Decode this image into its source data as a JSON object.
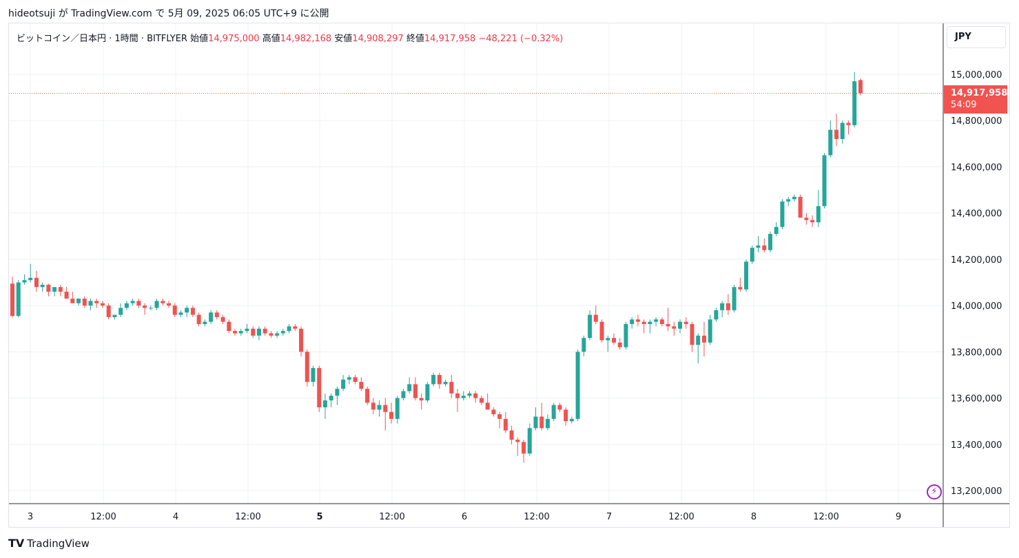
{
  "header": {
    "publisher_line": "hideotsuji が TradingView.com で 5月 09, 2025 06:05 UTC+9 に公開"
  },
  "legend": {
    "symbol": "ビットコイン／日本円 · 1時間 · BITFLYER",
    "open_label": "始値",
    "open_value": "14,975,000",
    "high_label": "高値",
    "high_value": "14,982,168",
    "low_label": "安値",
    "low_value": "14,908,297",
    "close_label": "終値",
    "close_value": "14,917,958",
    "change": "−48,221 (−0.32%)"
  },
  "currency_button": "JPY",
  "price_tag": {
    "price": "14,917,958",
    "countdown": "54:09"
  },
  "footer": {
    "logo_icon": "tradingview-logo-icon",
    "brand": "TradingView"
  },
  "colors": {
    "up": "#26a69a",
    "down": "#ef5350",
    "grid": "#eef0f3",
    "price_line": "#ef5350"
  },
  "chart_data": {
    "type": "candlestick",
    "yaxis": {
      "ticks": [
        13200000,
        13400000,
        13600000,
        13800000,
        14000000,
        14200000,
        14400000,
        14600000,
        14800000,
        15000000
      ],
      "tick_labels": [
        "13,200,000",
        "13,400,000",
        "13,600,000",
        "13,800,000",
        "14,000,000",
        "14,200,000",
        "14,400,000",
        "14,600,000",
        "14,800,000",
        "15,000,000"
      ],
      "range": [
        13150000,
        15200000
      ]
    },
    "xaxis": {
      "tick_labels": [
        "3",
        "12:00",
        "4",
        "12:00",
        "5",
        "12:00",
        "6",
        "12:00",
        "7",
        "12:00",
        "8",
        "12:00",
        "9"
      ],
      "bold_labels": [
        "5"
      ]
    },
    "last_price": 14917958,
    "candles": [
      [
        14095000,
        14125000,
        13950000,
        13955000
      ],
      [
        13955000,
        14110000,
        13950000,
        14100000
      ],
      [
        14100000,
        14135000,
        14090000,
        14110000
      ],
      [
        14110000,
        14180000,
        14100000,
        14120000
      ],
      [
        14120000,
        14150000,
        14060000,
        14080000
      ],
      [
        14080000,
        14100000,
        14060000,
        14090000
      ],
      [
        14090000,
        14095000,
        14040000,
        14060000
      ],
      [
        14060000,
        14080000,
        14040000,
        14080000
      ],
      [
        14080000,
        14090000,
        14040000,
        14060000
      ],
      [
        14060000,
        14080000,
        14030000,
        14030000
      ],
      [
        14030000,
        14060000,
        14010000,
        14010000
      ],
      [
        14010000,
        14030000,
        14000000,
        14030000
      ],
      [
        14030000,
        14040000,
        13990000,
        14000000
      ],
      [
        14000000,
        14030000,
        13980000,
        14020000
      ],
      [
        14020000,
        14030000,
        13990000,
        14010000
      ],
      [
        14010000,
        14020000,
        13990000,
        14000000
      ],
      [
        14000000,
        14010000,
        13940000,
        13950000
      ],
      [
        13950000,
        13960000,
        13940000,
        13960000
      ],
      [
        13960000,
        14010000,
        13950000,
        13990000
      ],
      [
        13990000,
        14020000,
        13980000,
        14010000
      ],
      [
        14010000,
        14030000,
        14000000,
        14020000
      ],
      [
        14020000,
        14030000,
        13990000,
        14000000
      ],
      [
        14000000,
        14010000,
        13960000,
        13990000
      ],
      [
        13990000,
        14000000,
        13980000,
        13990000
      ],
      [
        13990000,
        14030000,
        13980000,
        14020000
      ],
      [
        14020000,
        14030000,
        14000000,
        14010000
      ],
      [
        14010000,
        14020000,
        13990000,
        14000000
      ],
      [
        14000000,
        14010000,
        13950000,
        13960000
      ],
      [
        13960000,
        13980000,
        13950000,
        13970000
      ],
      [
        13970000,
        14000000,
        13950000,
        13990000
      ],
      [
        13990000,
        14000000,
        13950000,
        13960000
      ],
      [
        13960000,
        13970000,
        13910000,
        13920000
      ],
      [
        13920000,
        13940000,
        13910000,
        13930000
      ],
      [
        13930000,
        13980000,
        13920000,
        13970000
      ],
      [
        13970000,
        13980000,
        13940000,
        13950000
      ],
      [
        13950000,
        13960000,
        13920000,
        13930000
      ],
      [
        13930000,
        13940000,
        13880000,
        13890000
      ],
      [
        13890000,
        13900000,
        13870000,
        13880000
      ],
      [
        13880000,
        13900000,
        13870000,
        13890000
      ],
      [
        13890000,
        13920000,
        13880000,
        13900000
      ],
      [
        13900000,
        13910000,
        13860000,
        13870000
      ],
      [
        13870000,
        13910000,
        13850000,
        13900000
      ],
      [
        13900000,
        13910000,
        13870000,
        13880000
      ],
      [
        13880000,
        13890000,
        13860000,
        13870000
      ],
      [
        13870000,
        13890000,
        13860000,
        13880000
      ],
      [
        13880000,
        13900000,
        13870000,
        13890000
      ],
      [
        13890000,
        13920000,
        13880000,
        13910000
      ],
      [
        13910000,
        13920000,
        13890000,
        13900000
      ],
      [
        13900000,
        13910000,
        13780000,
        13800000
      ],
      [
        13800000,
        13810000,
        13650000,
        13670000
      ],
      [
        13670000,
        13740000,
        13650000,
        13730000
      ],
      [
        13730000,
        13740000,
        13540000,
        13560000
      ],
      [
        13560000,
        13620000,
        13510000,
        13590000
      ],
      [
        13590000,
        13620000,
        13560000,
        13610000
      ],
      [
        13610000,
        13650000,
        13570000,
        13640000
      ],
      [
        13640000,
        13700000,
        13630000,
        13680000
      ],
      [
        13680000,
        13700000,
        13660000,
        13690000
      ],
      [
        13690000,
        13700000,
        13660000,
        13670000
      ],
      [
        13670000,
        13690000,
        13630000,
        13640000
      ],
      [
        13640000,
        13650000,
        13570000,
        13580000
      ],
      [
        13580000,
        13600000,
        13530000,
        13550000
      ],
      [
        13550000,
        13590000,
        13520000,
        13570000
      ],
      [
        13570000,
        13600000,
        13460000,
        13540000
      ],
      [
        13540000,
        13580000,
        13490000,
        13510000
      ],
      [
        13510000,
        13610000,
        13490000,
        13600000
      ],
      [
        13600000,
        13640000,
        13590000,
        13630000
      ],
      [
        13630000,
        13690000,
        13620000,
        13660000
      ],
      [
        13660000,
        13690000,
        13590000,
        13600000
      ],
      [
        13600000,
        13620000,
        13550000,
        13590000
      ],
      [
        13590000,
        13670000,
        13580000,
        13660000
      ],
      [
        13660000,
        13710000,
        13650000,
        13700000
      ],
      [
        13700000,
        13710000,
        13640000,
        13660000
      ],
      [
        13660000,
        13680000,
        13650000,
        13670000
      ],
      [
        13670000,
        13700000,
        13600000,
        13620000
      ],
      [
        13620000,
        13640000,
        13540000,
        13600000
      ],
      [
        13600000,
        13630000,
        13590000,
        13610000
      ],
      [
        13610000,
        13630000,
        13600000,
        13620000
      ],
      [
        13620000,
        13630000,
        13580000,
        13600000
      ],
      [
        13600000,
        13610000,
        13570000,
        13580000
      ],
      [
        13580000,
        13620000,
        13550000,
        13550000
      ],
      [
        13550000,
        13560000,
        13520000,
        13530000
      ],
      [
        13530000,
        13540000,
        13470000,
        13510000
      ],
      [
        13510000,
        13540000,
        13450000,
        13460000
      ],
      [
        13460000,
        13480000,
        13400000,
        13420000
      ],
      [
        13420000,
        13430000,
        13350000,
        13410000
      ],
      [
        13410000,
        13420000,
        13320000,
        13360000
      ],
      [
        13360000,
        13490000,
        13350000,
        13470000
      ],
      [
        13470000,
        13560000,
        13460000,
        13520000
      ],
      [
        13520000,
        13580000,
        13460000,
        13470000
      ],
      [
        13470000,
        13530000,
        13460000,
        13510000
      ],
      [
        13510000,
        13580000,
        13500000,
        13570000
      ],
      [
        13570000,
        13580000,
        13540000,
        13550000
      ],
      [
        13550000,
        13560000,
        13480000,
        13500000
      ],
      [
        13500000,
        13520000,
        13490000,
        13510000
      ],
      [
        13510000,
        13810000,
        13500000,
        13800000
      ],
      [
        13800000,
        13870000,
        13780000,
        13860000
      ],
      [
        13860000,
        13980000,
        13850000,
        13960000
      ],
      [
        13960000,
        14000000,
        13920000,
        13930000
      ],
      [
        13930000,
        13940000,
        13840000,
        13850000
      ],
      [
        13850000,
        13870000,
        13800000,
        13860000
      ],
      [
        13860000,
        13880000,
        13830000,
        13840000
      ],
      [
        13840000,
        13860000,
        13810000,
        13820000
      ],
      [
        13820000,
        13930000,
        13810000,
        13920000
      ],
      [
        13920000,
        13950000,
        13900000,
        13940000
      ],
      [
        13940000,
        13960000,
        13910000,
        13930000
      ],
      [
        13930000,
        13940000,
        13880000,
        13920000
      ],
      [
        13920000,
        13940000,
        13880000,
        13930000
      ],
      [
        13930000,
        13950000,
        13910000,
        13940000
      ],
      [
        13940000,
        13950000,
        13910000,
        13920000
      ],
      [
        13920000,
        13990000,
        13890000,
        13910000
      ],
      [
        13910000,
        13930000,
        13870000,
        13900000
      ],
      [
        13900000,
        13940000,
        13880000,
        13930000
      ],
      [
        13930000,
        13950000,
        13900000,
        13920000
      ],
      [
        13920000,
        13930000,
        13800000,
        13830000
      ],
      [
        13830000,
        13880000,
        13750000,
        13870000
      ],
      [
        13870000,
        13930000,
        13780000,
        13840000
      ],
      [
        13840000,
        13960000,
        13830000,
        13940000
      ],
      [
        13940000,
        13990000,
        13930000,
        13980000
      ],
      [
        13980000,
        14020000,
        13950000,
        14010000
      ],
      [
        14010000,
        14050000,
        13960000,
        13980000
      ],
      [
        13980000,
        14090000,
        13970000,
        14080000
      ],
      [
        14080000,
        14120000,
        14060000,
        14070000
      ],
      [
        14070000,
        14200000,
        14060000,
        14190000
      ],
      [
        14190000,
        14260000,
        14180000,
        14250000
      ],
      [
        14250000,
        14300000,
        14230000,
        14260000
      ],
      [
        14260000,
        14290000,
        14230000,
        14240000
      ],
      [
        14240000,
        14320000,
        14230000,
        14310000
      ],
      [
        14310000,
        14360000,
        14300000,
        14340000
      ],
      [
        14340000,
        14460000,
        14330000,
        14450000
      ],
      [
        14450000,
        14470000,
        14430000,
        14460000
      ],
      [
        14460000,
        14480000,
        14450000,
        14470000
      ],
      [
        14470000,
        14480000,
        14380000,
        14380000
      ],
      [
        14380000,
        14400000,
        14350000,
        14370000
      ],
      [
        14370000,
        14390000,
        14340000,
        14360000
      ],
      [
        14360000,
        14500000,
        14340000,
        14430000
      ],
      [
        14430000,
        14660000,
        14420000,
        14650000
      ],
      [
        14650000,
        14800000,
        14640000,
        14760000
      ],
      [
        14760000,
        14830000,
        14690000,
        14720000
      ],
      [
        14720000,
        14800000,
        14700000,
        14790000
      ],
      [
        14790000,
        14800000,
        14740000,
        14780000
      ],
      [
        14780000,
        15010000,
        14770000,
        14970000
      ],
      [
        14975000,
        14982168,
        14908297,
        14917958
      ]
    ]
  }
}
